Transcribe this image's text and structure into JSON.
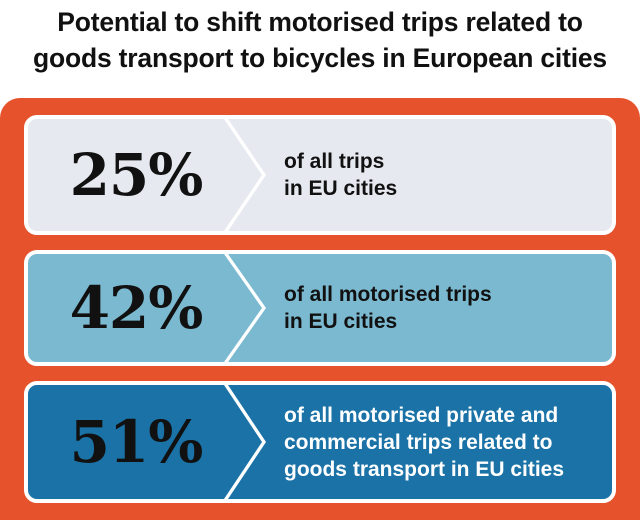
{
  "title": {
    "line1": "Potential to shift motorised trips related to",
    "line2": "goods transport to bicycles in European cities"
  },
  "colors": {
    "frame": "#e5522b",
    "row1_bg": "#e6e9ef",
    "row2_bg": "#7ab9d0",
    "row3_bg": "#1a72a6",
    "row1_text": "#111111",
    "row2_text": "#111111",
    "row3_text": "#ffffff"
  },
  "rows": [
    {
      "percent": "25%",
      "lines": [
        "of all trips",
        "in EU cities"
      ]
    },
    {
      "percent": "42%",
      "lines": [
        "of all motorised trips",
        "in EU cities"
      ]
    },
    {
      "percent": "51%",
      "lines": [
        "of all motorised private and",
        "commercial trips related to",
        "goods transport  in EU cities"
      ]
    }
  ]
}
